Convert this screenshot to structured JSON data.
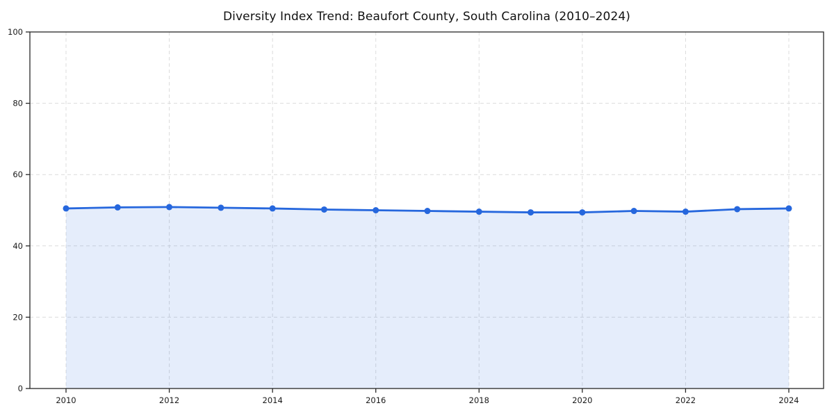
{
  "chart_data": {
    "type": "line",
    "title": "Diversity Index Trend: Beaufort County, South Carolina (2010–2024)",
    "x": [
      2010,
      2011,
      2012,
      2013,
      2014,
      2015,
      2016,
      2017,
      2018,
      2019,
      2020,
      2021,
      2022,
      2023,
      2024
    ],
    "series": [
      {
        "name": "Diversity Index",
        "values": [
          50.5,
          50.8,
          50.9,
          50.7,
          50.5,
          50.2,
          50.0,
          49.8,
          49.6,
          49.4,
          49.4,
          49.8,
          49.6,
          50.3,
          50.5
        ]
      }
    ],
    "xlabel": "",
    "ylabel": "",
    "ylim": [
      0,
      100
    ],
    "yticks": [
      0,
      20,
      40,
      60,
      80,
      100
    ],
    "xticks": [
      2010,
      2012,
      2014,
      2016,
      2018,
      2020,
      2022,
      2024
    ],
    "grid": "dashed-both-directions",
    "legend": "none",
    "area_fill": true,
    "marker": "circle",
    "colors": {
      "line": "#2667dd",
      "marker": "#2667dd",
      "fill": "rgba(38, 103, 221, 0.12)",
      "grid": "#dcdcdc",
      "spine": "#262626",
      "tick_label": "#1a1a1a",
      "title": "#111111",
      "background": "#ffffff"
    }
  }
}
